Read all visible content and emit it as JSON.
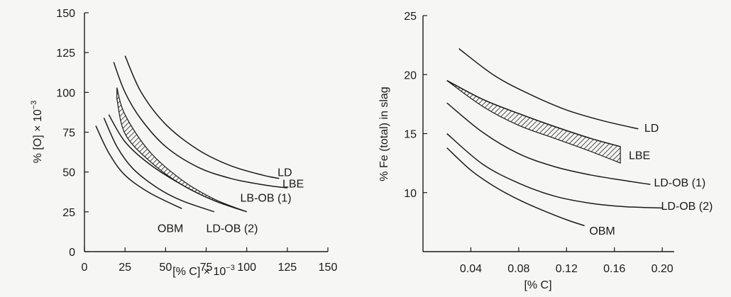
{
  "chart_data": [
    {
      "type": "line",
      "xlabel": "[% C] × 10",
      "xlabel_sup": "−3",
      "ylabel": "% [O] × 10",
      "ylabel_sup": "−3",
      "xlim": [
        0,
        150
      ],
      "ylim": [
        0,
        150
      ],
      "x_ticks": [
        0,
        25,
        50,
        75,
        100,
        125,
        150
      ],
      "y_ticks": [
        0,
        25,
        50,
        75,
        100,
        125,
        150
      ],
      "x_tick_labels": [
        "0",
        "25",
        "50",
        "75",
        "100",
        "125",
        "150"
      ],
      "y_tick_labels": [
        "0",
        "25",
        "50",
        "75",
        "100",
        "125",
        "150"
      ],
      "grid": false,
      "series": [
        {
          "name": "LD",
          "x": [
            25,
            35,
            50,
            70,
            90,
            110,
            120
          ],
          "y": [
            123,
            100,
            80,
            64,
            54,
            48,
            46
          ]
        },
        {
          "name": "LBE",
          "x": [
            18,
            25,
            35,
            50,
            70,
            90,
            110,
            125
          ],
          "y": [
            119,
            100,
            83,
            66,
            53,
            46,
            42,
            40
          ]
        },
        {
          "name": "LB-OB (1)",
          "x": [
            15,
            25,
            40,
            60,
            80,
            100
          ],
          "y": [
            86,
            69,
            55,
            42,
            32,
            25
          ]
        },
        {
          "name": "LD-OB (2)",
          "x": [
            12,
            20,
            30,
            45,
            60,
            80
          ],
          "y": [
            84,
            66,
            52,
            40,
            32,
            25
          ]
        },
        {
          "name": "OBM",
          "x": [
            7,
            15,
            25,
            40,
            60
          ],
          "y": [
            79,
            62,
            48,
            37,
            27
          ]
        }
      ],
      "shaded_band": {
        "x": [
          20,
          25,
          40,
          60,
          80,
          100
        ],
        "y_upper": [
          103,
          86,
          63,
          45,
          33,
          25
        ],
        "y_lower": [
          96,
          74,
          57,
          42,
          32,
          25
        ]
      },
      "annotations": [
        {
          "text": "LD",
          "x": 119,
          "y": 50
        },
        {
          "text": "LBE",
          "x": 122,
          "y": 43
        },
        {
          "text": "LB-OB (1)",
          "x": 96,
          "y": 34
        },
        {
          "text": "OBM",
          "x": 45,
          "y": 15
        },
        {
          "text": "LD-OB (2)",
          "x": 75,
          "y": 15
        }
      ]
    },
    {
      "type": "line",
      "xlabel": "[% C]",
      "ylabel": "% Fe (total) in slag",
      "xlim": [
        0,
        0.21
      ],
      "ylim": [
        5,
        25
      ],
      "x_ticks": [
        0.04,
        0.08,
        0.12,
        0.16,
        0.2
      ],
      "y_ticks": [
        10,
        15,
        20,
        25
      ],
      "x_tick_labels": [
        "0.04",
        "0.08",
        "0.12",
        "0.16",
        "0.20"
      ],
      "y_tick_labels": [
        "10",
        "15",
        "20",
        "25"
      ],
      "grid": false,
      "series": [
        {
          "name": "LD",
          "x": [
            0.03,
            0.06,
            0.09,
            0.12,
            0.15,
            0.18
          ],
          "y": [
            22.2,
            19.9,
            18.3,
            17.0,
            16.1,
            15.4
          ]
        },
        {
          "name": "LBE",
          "x": [
            0.02,
            0.05,
            0.08,
            0.11,
            0.14,
            0.165
          ],
          "y": [
            19.5,
            17.9,
            16.7,
            15.6,
            14.6,
            13.9
          ]
        },
        {
          "name": "LD-OB (1)",
          "x": [
            0.02,
            0.05,
            0.08,
            0.11,
            0.14,
            0.17,
            0.19
          ],
          "y": [
            17.6,
            15.1,
            13.3,
            12.2,
            11.5,
            11.0,
            10.7
          ]
        },
        {
          "name": "LD-OB (2)",
          "x": [
            0.02,
            0.05,
            0.08,
            0.11,
            0.14,
            0.17,
            0.2
          ],
          "y": [
            15.0,
            12.4,
            10.8,
            9.7,
            9.1,
            8.8,
            8.7
          ]
        },
        {
          "name": "OBM",
          "x": [
            0.02,
            0.04,
            0.06,
            0.08,
            0.1,
            0.12,
            0.135
          ],
          "y": [
            13.8,
            11.9,
            10.5,
            9.4,
            8.5,
            7.7,
            7.2
          ]
        }
      ],
      "shaded_band": {
        "x": [
          0.02,
          0.05,
          0.08,
          0.11,
          0.14,
          0.165
        ],
        "y_upper": [
          19.5,
          17.9,
          16.7,
          15.6,
          14.6,
          13.9
        ],
        "y_lower": [
          19.5,
          17.3,
          15.7,
          14.6,
          13.5,
          12.5
        ]
      },
      "annotations": [
        {
          "text": "LD",
          "x": 0.185,
          "y": 15.5
        },
        {
          "text": "LBE",
          "x": 0.172,
          "y": 13.2
        },
        {
          "text": "LD-OB (1)",
          "x": 0.193,
          "y": 10.9
        },
        {
          "text": "LD-OB (2)",
          "x": 0.199,
          "y": 8.9
        },
        {
          "text": "OBM",
          "x": 0.139,
          "y": 6.8
        }
      ]
    }
  ]
}
